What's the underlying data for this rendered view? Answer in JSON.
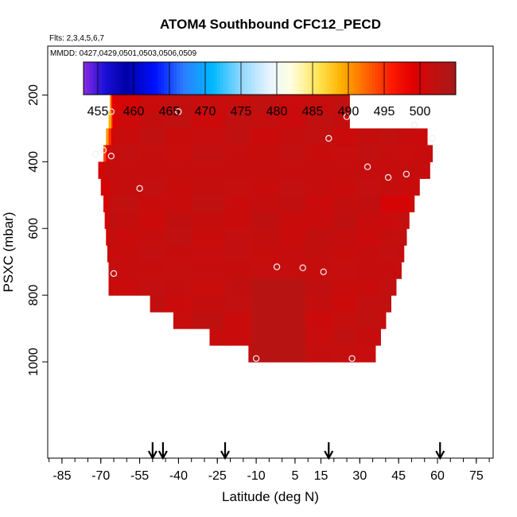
{
  "chart_data": {
    "type": "heatmap",
    "title": "ATOM4 Southbound CFC12_PECD",
    "flights_note": "Flts: 2,3,4,5,6,7",
    "dates_note": "MMDD: 0427,0429,0501,0503,0506,0509",
    "xlabel": "Latitude (deg N)",
    "ylabel": "PSXC (mbar)",
    "xlim": [
      -90,
      80
    ],
    "ylim": [
      1000,
      0
    ],
    "x_ticks": [
      -85,
      -70,
      -55,
      -40,
      -25,
      -10,
      5,
      15,
      30,
      45,
      60,
      75
    ],
    "x_minor_step": 5,
    "y_ticks": [
      200,
      400,
      600,
      800,
      1000
    ],
    "colorbar": {
      "min": 453,
      "max": 505,
      "ticks": [
        455,
        460,
        465,
        470,
        475,
        480,
        485,
        490,
        495,
        500
      ],
      "stops": [
        {
          "v": 453,
          "c": "#8a2be2"
        },
        {
          "v": 456,
          "c": "#1a0fd8"
        },
        {
          "v": 459,
          "c": "#0000a8"
        },
        {
          "v": 463,
          "c": "#0010ff"
        },
        {
          "v": 467,
          "c": "#2d7dff"
        },
        {
          "v": 471,
          "c": "#00b8ff"
        },
        {
          "v": 475,
          "c": "#8fd8ff"
        },
        {
          "v": 479,
          "c": "#e8f4ff"
        },
        {
          "v": 482,
          "c": "#ffffe0"
        },
        {
          "v": 486,
          "c": "#ffe34d"
        },
        {
          "v": 489,
          "c": "#ffb000"
        },
        {
          "v": 492,
          "c": "#ff7000"
        },
        {
          "v": 496,
          "c": "#ff1a00"
        },
        {
          "v": 499,
          "c": "#e00000"
        },
        {
          "v": 502,
          "c": "#c01010"
        },
        {
          "v": 505,
          "c": "#a81818"
        }
      ]
    },
    "field": {
      "background_value": 501.5,
      "column_boundaries_deg": [
        -71,
        -69,
        -68,
        -67,
        -66,
        -65.5,
        -64,
        -55,
        -45,
        -35,
        -22,
        -12,
        -1,
        9,
        20,
        29,
        38,
        45,
        50,
        54,
        58,
        62
      ],
      "row_boundaries_mbar": [
        200,
        250,
        300,
        350,
        400,
        450,
        500,
        550,
        600,
        650,
        700,
        750,
        800,
        850,
        900,
        950,
        1000
      ],
      "row_extents_deg": [
        [
          -66.5,
          26
        ],
        [
          -67,
          26
        ],
        [
          -68,
          56
        ],
        [
          -69,
          58
        ],
        [
          -71,
          57
        ],
        [
          -70,
          53
        ],
        [
          -69,
          51
        ],
        [
          -68.5,
          49
        ],
        [
          -68,
          48
        ],
        [
          -67.5,
          47
        ],
        [
          -67,
          46
        ],
        [
          -67,
          44
        ],
        [
          -51,
          42
        ],
        [
          -42,
          40
        ],
        [
          -28,
          38
        ],
        [
          -13,
          36
        ]
      ],
      "anomalies": [
        {
          "lat": [
            -66.5,
            -66
          ],
          "p": [
            200,
            250
          ],
          "value": 490
        },
        {
          "lat": [
            -66,
            -65.5
          ],
          "p": [
            200,
            250
          ],
          "value": 496
        },
        {
          "lat": [
            -65.5,
            -64.5
          ],
          "p": [
            200,
            250
          ],
          "value": 499
        },
        {
          "lat": [
            -64.5,
            -55
          ],
          "p": [
            200,
            250
          ],
          "value": 500
        },
        {
          "lat": [
            -67,
            -66
          ],
          "p": [
            250,
            300
          ],
          "value": 489
        },
        {
          "lat": [
            -66,
            -65.5
          ],
          "p": [
            250,
            300
          ],
          "value": 494
        },
        {
          "lat": [
            -65.5,
            -64.5
          ],
          "p": [
            250,
            300
          ],
          "value": 499
        },
        {
          "lat": [
            -68,
            -67
          ],
          "p": [
            300,
            350
          ],
          "value": 490
        },
        {
          "lat": [
            -67,
            -66
          ],
          "p": [
            300,
            350
          ],
          "value": 495
        },
        {
          "lat": [
            -66,
            -65
          ],
          "p": [
            300,
            350
          ],
          "value": 499
        },
        {
          "lat": [
            -69,
            -68
          ],
          "p": [
            350,
            400
          ],
          "value": 494
        },
        {
          "lat": [
            -68,
            -67
          ],
          "p": [
            350,
            400
          ],
          "value": 499
        },
        {
          "lat": [
            -71,
            -69
          ],
          "p": [
            400,
            450
          ],
          "value": 500
        },
        {
          "lat": [
            38,
            48
          ],
          "p": [
            500,
            550
          ],
          "value": 500
        },
        {
          "lat": [
            -70,
            -67
          ],
          "p": [
            450,
            650
          ],
          "value": 500
        },
        {
          "lat": [
            45,
            53
          ],
          "p": [
            250,
            300
          ],
          "value": 502.5
        },
        {
          "lat": [
            -10,
            10
          ],
          "p": [
            750,
            1000
          ],
          "value": 503
        }
      ]
    },
    "sample_points": [
      {
        "lat": -69,
        "p": 264
      },
      {
        "lat": -66,
        "p": 250
      },
      {
        "lat": -40,
        "p": 250
      },
      {
        "lat": 25,
        "p": 265
      },
      {
        "lat": 51,
        "p": 290
      },
      {
        "lat": 18,
        "p": 330
      },
      {
        "lat": 58,
        "p": 330
      },
      {
        "lat": -69,
        "p": 365
      },
      {
        "lat": -72,
        "p": 377
      },
      {
        "lat": -66,
        "p": 383
      },
      {
        "lat": 33,
        "p": 415
      },
      {
        "lat": 48,
        "p": 437
      },
      {
        "lat": 41,
        "p": 447
      },
      {
        "lat": -55,
        "p": 480
      },
      {
        "lat": -2,
        "p": 715
      },
      {
        "lat": 8,
        "p": 718
      },
      {
        "lat": 16,
        "p": 730
      },
      {
        "lat": -65,
        "p": 735
      },
      {
        "lat": -10,
        "p": 990
      },
      {
        "lat": 27,
        "p": 990
      }
    ],
    "flight_arrows_lat": [
      -50,
      -46,
      -22,
      18,
      61
    ]
  }
}
